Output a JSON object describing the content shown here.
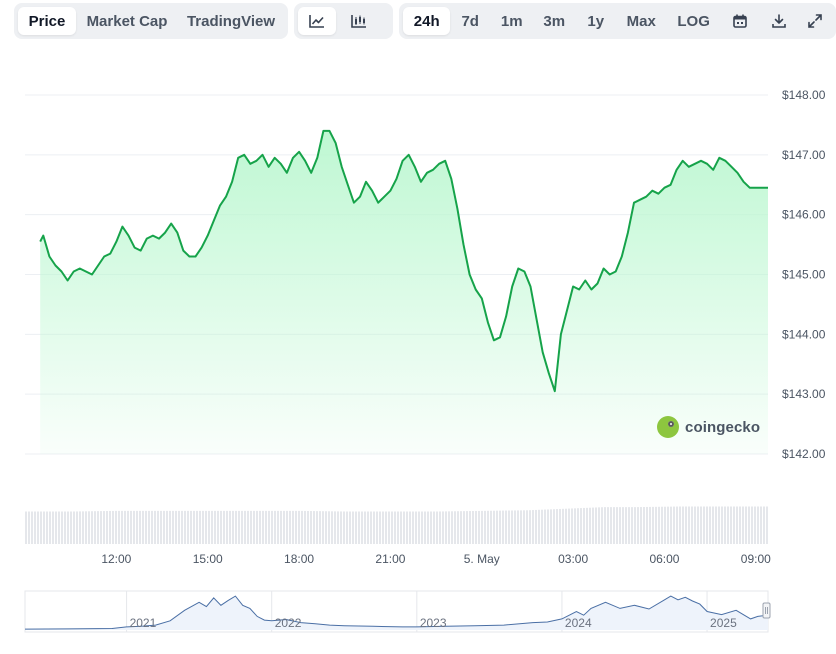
{
  "toolbar": {
    "view_tabs": [
      {
        "label": "Price",
        "active": true
      },
      {
        "label": "Market Cap",
        "active": false
      },
      {
        "label": "TradingView",
        "active": false
      }
    ],
    "chart_type_icons": [
      "line-chart-icon",
      "candlestick-icon"
    ],
    "ranges": [
      {
        "label": "24h",
        "active": true
      },
      {
        "label": "7d",
        "active": false
      },
      {
        "label": "1m",
        "active": false
      },
      {
        "label": "3m",
        "active": false
      },
      {
        "label": "1y",
        "active": false
      },
      {
        "label": "Max",
        "active": false
      },
      {
        "label": "LOG",
        "active": false
      }
    ],
    "tool_icons": [
      "calendar-icon",
      "download-icon",
      "expand-icon"
    ]
  },
  "watermark": {
    "text": "coingecko"
  },
  "colors": {
    "line": "#16a34a",
    "area_top": "#bbf7d0",
    "volume": "#e5e7eb",
    "navigator_line": "#4a6fa5",
    "grid": "#eceff3"
  },
  "chart_data": {
    "type": "area",
    "y_label_format": "$",
    "yticks": [
      "$148.00",
      "$147.00",
      "$146.00",
      "$145.00",
      "$144.00",
      "$143.00",
      "$142.00"
    ],
    "ytick_values": [
      148,
      147,
      146,
      145,
      144,
      143,
      142
    ],
    "ylim": [
      142,
      148
    ],
    "xlim": [
      9.0,
      33.4
    ],
    "xticks": [
      {
        "label": "12:00",
        "x": 12
      },
      {
        "label": "15:00",
        "x": 15
      },
      {
        "label": "18:00",
        "x": 18
      },
      {
        "label": "21:00",
        "x": 21
      },
      {
        "label": "5. May",
        "x": 24
      },
      {
        "label": "03:00",
        "x": 27
      },
      {
        "label": "06:00",
        "x": 30
      },
      {
        "label": "09:00",
        "x": 33
      }
    ],
    "series": [
      {
        "x": [
          9.5,
          9.6,
          9.8,
          10.0,
          10.2,
          10.4,
          10.6,
          10.8,
          11.0,
          11.2,
          11.4,
          11.6,
          11.8,
          12.0,
          12.2,
          12.4,
          12.6,
          12.8,
          13.0,
          13.2,
          13.4,
          13.6,
          13.8,
          14.0,
          14.2,
          14.4,
          14.6,
          14.8,
          15.0,
          15.2,
          15.4,
          15.6,
          15.8,
          16.0,
          16.2,
          16.4,
          16.6,
          16.8,
          17.0,
          17.2,
          17.4,
          17.6,
          17.8,
          18.0,
          18.2,
          18.4,
          18.6,
          18.8,
          19.0,
          19.2,
          19.4,
          19.6,
          19.8,
          20.0,
          20.2,
          20.4,
          20.6,
          20.8,
          21.0,
          21.2,
          21.4,
          21.6,
          21.8,
          22.0,
          22.2,
          22.4,
          22.6,
          22.8,
          23.0,
          23.2,
          23.4,
          23.6,
          23.8,
          24.0,
          24.2,
          24.4,
          24.6,
          24.8,
          25.0,
          25.2,
          25.4,
          25.6,
          25.8,
          26.0,
          26.2,
          26.4,
          26.6,
          26.8,
          27.0,
          27.2,
          27.4,
          27.6,
          27.8,
          28.0,
          28.2,
          28.4,
          28.6,
          28.8,
          29.0,
          29.2,
          29.4,
          29.6,
          29.8,
          30.0,
          30.2,
          30.4,
          30.6,
          30.8,
          31.0,
          31.2,
          31.4,
          31.6,
          31.8,
          32.0,
          32.2,
          32.4,
          32.6,
          32.8,
          33.0,
          33.2,
          33.4
        ],
        "y": [
          145.55,
          145.65,
          145.3,
          145.15,
          145.05,
          144.9,
          145.05,
          145.1,
          145.05,
          145.0,
          145.15,
          145.3,
          145.35,
          145.55,
          145.8,
          145.65,
          145.45,
          145.4,
          145.6,
          145.65,
          145.6,
          145.7,
          145.85,
          145.7,
          145.4,
          145.3,
          145.3,
          145.45,
          145.65,
          145.9,
          146.15,
          146.3,
          146.55,
          146.95,
          147.0,
          146.85,
          146.9,
          147.0,
          146.8,
          146.95,
          146.85,
          146.7,
          146.95,
          147.05,
          146.9,
          146.7,
          146.95,
          147.4,
          147.4,
          147.2,
          146.8,
          146.5,
          146.2,
          146.3,
          146.55,
          146.4,
          146.2,
          146.3,
          146.4,
          146.6,
          146.9,
          147.0,
          146.8,
          146.55,
          146.7,
          146.75,
          146.85,
          146.9,
          146.6,
          146.1,
          145.5,
          145.0,
          144.75,
          144.6,
          144.2,
          143.9,
          143.95,
          144.3,
          144.8,
          145.1,
          145.05,
          144.8,
          144.25,
          143.7,
          143.35,
          143.05,
          144.0,
          144.4,
          144.8,
          144.75,
          144.9,
          144.75,
          144.85,
          145.1,
          145.0,
          145.05,
          145.3,
          145.7,
          146.2,
          146.25,
          146.3,
          146.4,
          146.35,
          146.45,
          146.5,
          146.75,
          146.9,
          146.8,
          146.85,
          146.9,
          146.85,
          146.75,
          146.95,
          146.9,
          146.8,
          146.7,
          146.55,
          146.45,
          146.45,
          146.45,
          146.45
        ]
      }
    ],
    "volume": {
      "x": [
        9.0,
        10.5,
        12.0,
        13.5,
        15.0,
        16.5,
        18.0,
        19.5,
        21.0,
        22.5,
        24.0,
        25.5,
        26.5,
        27.5,
        28.0,
        29.0,
        30.5,
        32.0,
        33.4
      ],
      "values": [
        52,
        52,
        53,
        53,
        53,
        53,
        53,
        52,
        52,
        52,
        53,
        54,
        56,
        58,
        59,
        59,
        60,
        60,
        60
      ]
    },
    "navigator": {
      "xticks": [
        {
          "label": "2021",
          "x": 2021
        },
        {
          "label": "2022",
          "x": 2022
        },
        {
          "label": "2023",
          "x": 2023
        },
        {
          "label": "2024",
          "x": 2024
        },
        {
          "label": "2025",
          "x": 2025
        }
      ],
      "xlim": [
        2020.3,
        2025.42
      ],
      "series": {
        "x": [
          2020.3,
          2020.6,
          2020.9,
          2021.0,
          2021.1,
          2021.2,
          2021.3,
          2021.4,
          2021.5,
          2021.55,
          2021.6,
          2021.65,
          2021.7,
          2021.75,
          2021.8,
          2021.85,
          2021.9,
          2021.95,
          2022.0,
          2022.1,
          2022.2,
          2022.3,
          2022.4,
          2022.5,
          2022.7,
          2022.9,
          2023.0,
          2023.2,
          2023.4,
          2023.6,
          2023.8,
          2023.9,
          2024.0,
          2024.1,
          2024.15,
          2024.2,
          2024.3,
          2024.4,
          2024.5,
          2024.6,
          2024.7,
          2024.75,
          2024.8,
          2024.85,
          2024.9,
          2024.95,
          2025.0,
          2025.1,
          2025.2,
          2025.3,
          2025.35,
          2025.42
        ],
        "y": [
          1.5,
          1.8,
          2.5,
          5,
          6,
          8,
          15,
          32,
          45,
          38,
          52,
          40,
          48,
          55,
          40,
          35,
          22,
          16,
          15,
          17,
          12,
          10,
          8,
          7,
          6,
          5,
          5,
          6,
          7,
          8,
          12,
          13,
          18,
          30,
          24,
          35,
          45,
          35,
          40,
          34,
          48,
          55,
          49,
          53,
          47,
          42,
          30,
          25,
          32,
          18,
          22,
          24
        ]
      }
    }
  }
}
